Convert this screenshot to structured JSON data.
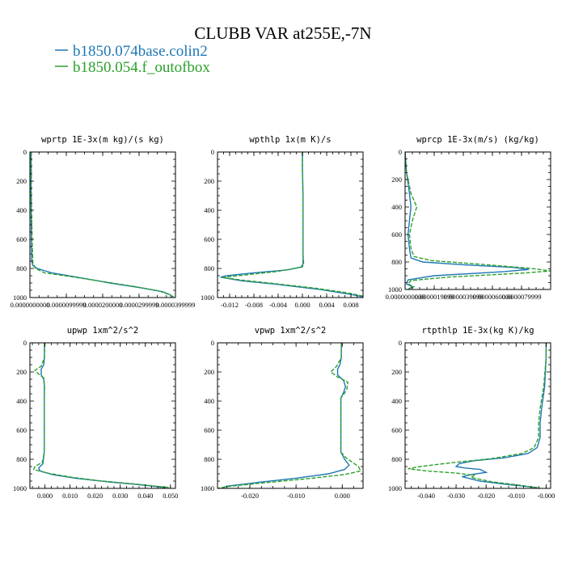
{
  "title": "CLUBB VAR at255E,-7N",
  "legend": [
    {
      "label": "b1850.074base.colin2",
      "color": "#1f77b4",
      "dash": "solid"
    },
    {
      "label": "b1850.054.f_outofbox",
      "color": "#2ca02c",
      "dash": "dashed"
    }
  ],
  "chart_data": [
    {
      "type": "line",
      "title": "wprtp  1E-3x(m kg)/(s kg)",
      "xlim": [
        0,
        4e-05
      ],
      "ylim": [
        1000,
        0
      ],
      "xticks": [
        0.0,
        1e-05,
        2e-05,
        3e-05,
        4e-05
      ],
      "xtick_labels": [
        "0.0000000000",
        "0.0000099999",
        "0.0000200000",
        "0.0000299999",
        "0.0000399999"
      ],
      "yticks": [
        0,
        200,
        400,
        600,
        800,
        1000
      ],
      "series": [
        {
          "name": "b1850.074base.colin2",
          "points": [
            [
              3e-07,
              0
            ],
            [
              3e-07,
              300
            ],
            [
              4e-07,
              600
            ],
            [
              5e-07,
              750
            ],
            [
              8e-07,
              780
            ],
            [
              2e-06,
              800
            ],
            [
              6e-06,
              830
            ],
            [
              1.3e-05,
              860
            ],
            [
              2.2e-05,
              900
            ],
            [
              3.1e-05,
              935
            ],
            [
              3.65e-05,
              960
            ],
            [
              3.85e-05,
              980
            ],
            [
              3.9e-05,
              1000
            ]
          ]
        },
        {
          "name": "b1850.054.f_outofbox",
          "points": [
            [
              4e-07,
              0
            ],
            [
              4e-07,
              300
            ],
            [
              6e-07,
              600
            ],
            [
              8e-07,
              760
            ],
            [
              1.5e-06,
              800
            ],
            [
              4e-06,
              830
            ],
            [
              1.1e-05,
              855
            ],
            [
              2e-05,
              890
            ],
            [
              2.9e-05,
              925
            ],
            [
              3.55e-05,
              955
            ],
            [
              3.78e-05,
              975
            ],
            [
              3.95e-05,
              995
            ],
            [
              3.9e-05,
              1000
            ]
          ]
        }
      ]
    },
    {
      "type": "line",
      "title": "wpthlp  1x(m K)/s",
      "xlim": [
        -0.014,
        0.01
      ],
      "ylim": [
        1000,
        0
      ],
      "xticks": [
        -0.012,
        -0.008,
        -0.004,
        0.0,
        0.004,
        0.008
      ],
      "xtick_labels": [
        "-0.012",
        "-0.008",
        "-0.004",
        "0.000",
        "0.004",
        "0.008"
      ],
      "yticks": [
        0,
        200,
        400,
        600,
        800,
        1000
      ],
      "series": [
        {
          "name": "b1850.074base.colin2",
          "points": [
            [
              0.0,
              0
            ],
            [
              0.0,
              100
            ],
            [
              0.0001,
              300
            ],
            [
              0.0001,
              500
            ],
            [
              0.0001,
              700
            ],
            [
              0.0001,
              770
            ],
            [
              -0.0002,
              790
            ],
            [
              -0.0025,
              810
            ],
            [
              -0.008,
              830
            ],
            [
              -0.0125,
              850
            ],
            [
              -0.0135,
              860
            ],
            [
              -0.01,
              885
            ],
            [
              -0.004,
              910
            ],
            [
              0.003,
              945
            ],
            [
              0.0075,
              975
            ],
            [
              0.01,
              995
            ]
          ]
        },
        {
          "name": "b1850.054.f_outofbox",
          "points": [
            [
              0.0,
              0
            ],
            [
              0.0,
              100
            ],
            [
              0.0001,
              300
            ],
            [
              0.0001,
              500
            ],
            [
              0.0001,
              700
            ],
            [
              0.0002,
              760
            ],
            [
              0.0,
              790
            ],
            [
              -0.004,
              820
            ],
            [
              -0.0095,
              845
            ],
            [
              -0.0132,
              862
            ],
            [
              -0.01,
              880
            ],
            [
              -0.0055,
              900
            ],
            [
              0.002,
              935
            ],
            [
              0.007,
              965
            ],
            [
              0.01,
              990
            ]
          ]
        }
      ]
    },
    {
      "type": "line",
      "title": "wprcp  1E-3x(m/s) (kg/kg)",
      "xlim": [
        0,
        1e-05
      ],
      "ylim": [
        1000,
        0
      ],
      "xticks": [
        0.0,
        2e-06,
        4e-06,
        6e-06,
        8e-06
      ],
      "xtick_labels": [
        "0.0000000000",
        "0.0000019999",
        "0.0000039999",
        "0.0000060000",
        "0.0000079999"
      ],
      "yticks": [
        0,
        200,
        400,
        600,
        800,
        1000
      ],
      "series": [
        {
          "name": "b1850.074base.colin2",
          "points": [
            [
              0.0,
              0
            ],
            [
              1e-07,
              150
            ],
            [
              3e-07,
              300
            ],
            [
              4e-07,
              400
            ],
            [
              3e-07,
              500
            ],
            [
              2e-07,
              600
            ],
            [
              3e-07,
              700
            ],
            [
              4e-07,
              770
            ],
            [
              1.2e-06,
              800
            ],
            [
              4e-06,
              820
            ],
            [
              7.5e-06,
              840
            ],
            [
              8.5e-06,
              855
            ],
            [
              6.8e-06,
              870
            ],
            [
              2e-06,
              900
            ],
            [
              2e-07,
              930
            ],
            [
              1e-07,
              960
            ],
            [
              5e-07,
              980
            ],
            [
              2e-07,
              1000
            ]
          ]
        },
        {
          "name": "b1850.054.f_outofbox",
          "points": [
            [
              0.0,
              0
            ],
            [
              1e-07,
              150
            ],
            [
              4e-07,
              300
            ],
            [
              8e-07,
              400
            ],
            [
              5e-07,
              500
            ],
            [
              3e-07,
              600
            ],
            [
              4e-07,
              700
            ],
            [
              6e-07,
              760
            ],
            [
              1.8e-06,
              790
            ],
            [
              5e-06,
              815
            ],
            [
              8.5e-06,
              845
            ],
            [
              1e-05,
              865
            ],
            [
              8.2e-06,
              880
            ],
            [
              3e-06,
              910
            ],
            [
              4e-07,
              935
            ],
            [
              2e-07,
              960
            ],
            [
              6e-07,
              980
            ],
            [
              2e-07,
              1000
            ]
          ]
        }
      ]
    },
    {
      "type": "line",
      "title": "upwp  1xm^2/s^2",
      "xlim": [
        -0.006,
        0.052
      ],
      "ylim": [
        1000,
        0
      ],
      "xticks": [
        0.0,
        0.01,
        0.02,
        0.03,
        0.04,
        0.05
      ],
      "xtick_labels": [
        "0.000",
        "0.010",
        "0.020",
        "0.030",
        "0.040",
        "0.050"
      ],
      "yticks": [
        0,
        200,
        400,
        600,
        800,
        1000
      ],
      "series": [
        {
          "name": "b1850.074base.colin2",
          "points": [
            [
              -0.0002,
              0
            ],
            [
              -0.0002,
              100
            ],
            [
              -0.0005,
              150
            ],
            [
              -0.0015,
              180
            ],
            [
              -0.0015,
              220
            ],
            [
              -0.0005,
              250
            ],
            [
              -0.0002,
              300
            ],
            [
              -0.0003,
              400
            ],
            [
              -0.0003,
              500
            ],
            [
              -0.0003,
              600
            ],
            [
              -0.0003,
              750
            ],
            [
              -0.0008,
              830
            ],
            [
              -0.0025,
              860
            ],
            [
              -0.002,
              880
            ],
            [
              0.003,
              905
            ],
            [
              0.012,
              930
            ],
            [
              0.025,
              955
            ],
            [
              0.038,
              975
            ],
            [
              0.048,
              995
            ]
          ]
        },
        {
          "name": "b1850.054.f_outofbox",
          "points": [
            [
              -0.0002,
              0
            ],
            [
              -0.0002,
              100
            ],
            [
              -0.0015,
              160
            ],
            [
              -0.004,
              190
            ],
            [
              -0.0025,
              215
            ],
            [
              -0.0005,
              240
            ],
            [
              -0.0002,
              300
            ],
            [
              -0.0003,
              400
            ],
            [
              -0.0003,
              500
            ],
            [
              -0.0003,
              600
            ],
            [
              -0.0003,
              750
            ],
            [
              -0.001,
              820
            ],
            [
              -0.004,
              850
            ],
            [
              -0.0045,
              870
            ],
            [
              0.001,
              895
            ],
            [
              0.01,
              922
            ],
            [
              0.022,
              948
            ],
            [
              0.036,
              970
            ],
            [
              0.05,
              995
            ]
          ]
        }
      ]
    },
    {
      "type": "line",
      "title": "vpwp  1xm^2/s^2",
      "xlim": [
        -0.027,
        0.0045
      ],
      "ylim": [
        1000,
        0
      ],
      "xticks": [
        -0.02,
        -0.01,
        0.0
      ],
      "xtick_labels": [
        "-0.020",
        "-0.010",
        "0.000"
      ],
      "yticks": [
        0,
        200,
        400,
        600,
        800,
        1000
      ],
      "series": [
        {
          "name": "b1850.074base.colin2",
          "points": [
            [
              -0.0002,
              0
            ],
            [
              -0.0002,
              100
            ],
            [
              -0.0005,
              150
            ],
            [
              -0.001,
              180
            ],
            [
              -0.001,
              220
            ],
            [
              0.0003,
              260
            ],
            [
              0.0007,
              300
            ],
            [
              0.0003,
              340
            ],
            [
              -0.0003,
              380
            ],
            [
              -0.0003,
              500
            ],
            [
              -0.0003,
              600
            ],
            [
              -0.0003,
              750
            ],
            [
              0.0005,
              800
            ],
            [
              0.0015,
              840
            ],
            [
              0.0005,
              870
            ],
            [
              -0.003,
              900
            ],
            [
              -0.01,
              930
            ],
            [
              -0.018,
              958
            ],
            [
              -0.025,
              985
            ],
            [
              -0.026,
              1000
            ]
          ]
        },
        {
          "name": "b1850.054.f_outofbox",
          "points": [
            [
              -0.0002,
              0
            ],
            [
              -0.0002,
              100
            ],
            [
              -0.0012,
              160
            ],
            [
              -0.0025,
              200
            ],
            [
              -0.001,
              235
            ],
            [
              0.0012,
              270
            ],
            [
              0.001,
              320
            ],
            [
              0.0004,
              350
            ],
            [
              -0.0003,
              380
            ],
            [
              -0.0003,
              500
            ],
            [
              -0.0003,
              600
            ],
            [
              -0.0003,
              750
            ],
            [
              0.0008,
              790
            ],
            [
              0.0035,
              850
            ],
            [
              0.004,
              880
            ],
            [
              0.0005,
              905
            ],
            [
              -0.008,
              935
            ],
            [
              -0.017,
              962
            ],
            [
              -0.025,
              988
            ],
            [
              -0.027,
              1000
            ]
          ]
        }
      ]
    },
    {
      "type": "line",
      "title": "rtpthlp  1E-3x(kg K)/kg",
      "xlim": [
        -0.047,
        0.0015
      ],
      "ylim": [
        1000,
        0
      ],
      "xticks": [
        -0.04,
        -0.03,
        -0.02,
        -0.01,
        0.0
      ],
      "xtick_labels": [
        "-0.040",
        "-0.030",
        "-0.020",
        "-0.010",
        "-0.000"
      ],
      "yticks": [
        0,
        200,
        400,
        600,
        800,
        1000
      ],
      "series": [
        {
          "name": "b1850.074base.colin2",
          "points": [
            [
              0.0,
              0
            ],
            [
              0.0,
              100
            ],
            [
              -0.0005,
              300
            ],
            [
              -0.0015,
              450
            ],
            [
              -0.002,
              550
            ],
            [
              -0.002,
              650
            ],
            [
              -0.003,
              720
            ],
            [
              -0.006,
              760
            ],
            [
              -0.014,
              790
            ],
            [
              -0.024,
              810
            ],
            [
              -0.029,
              830
            ],
            [
              -0.03,
              850
            ],
            [
              -0.027,
              860
            ],
            [
              -0.022,
              870
            ],
            [
              -0.02,
              890
            ],
            [
              -0.025,
              905
            ],
            [
              -0.028,
              920
            ],
            [
              -0.022,
              950
            ],
            [
              -0.012,
              975
            ],
            [
              -0.003,
              995
            ]
          ]
        },
        {
          "name": "b1850.054.f_outofbox",
          "points": [
            [
              0.0,
              0
            ],
            [
              0.0,
              100
            ],
            [
              -0.0008,
              300
            ],
            [
              -0.002,
              450
            ],
            [
              -0.0025,
              550
            ],
            [
              -0.0025,
              650
            ],
            [
              -0.004,
              720
            ],
            [
              -0.008,
              760
            ],
            [
              -0.018,
              795
            ],
            [
              -0.032,
              825
            ],
            [
              -0.042,
              850
            ],
            [
              -0.046,
              865
            ],
            [
              -0.04,
              880
            ],
            [
              -0.03,
              895
            ],
            [
              -0.024,
              910
            ],
            [
              -0.025,
              925
            ],
            [
              -0.018,
              955
            ],
            [
              -0.008,
              980
            ],
            [
              -0.002,
              998
            ]
          ]
        }
      ]
    }
  ]
}
